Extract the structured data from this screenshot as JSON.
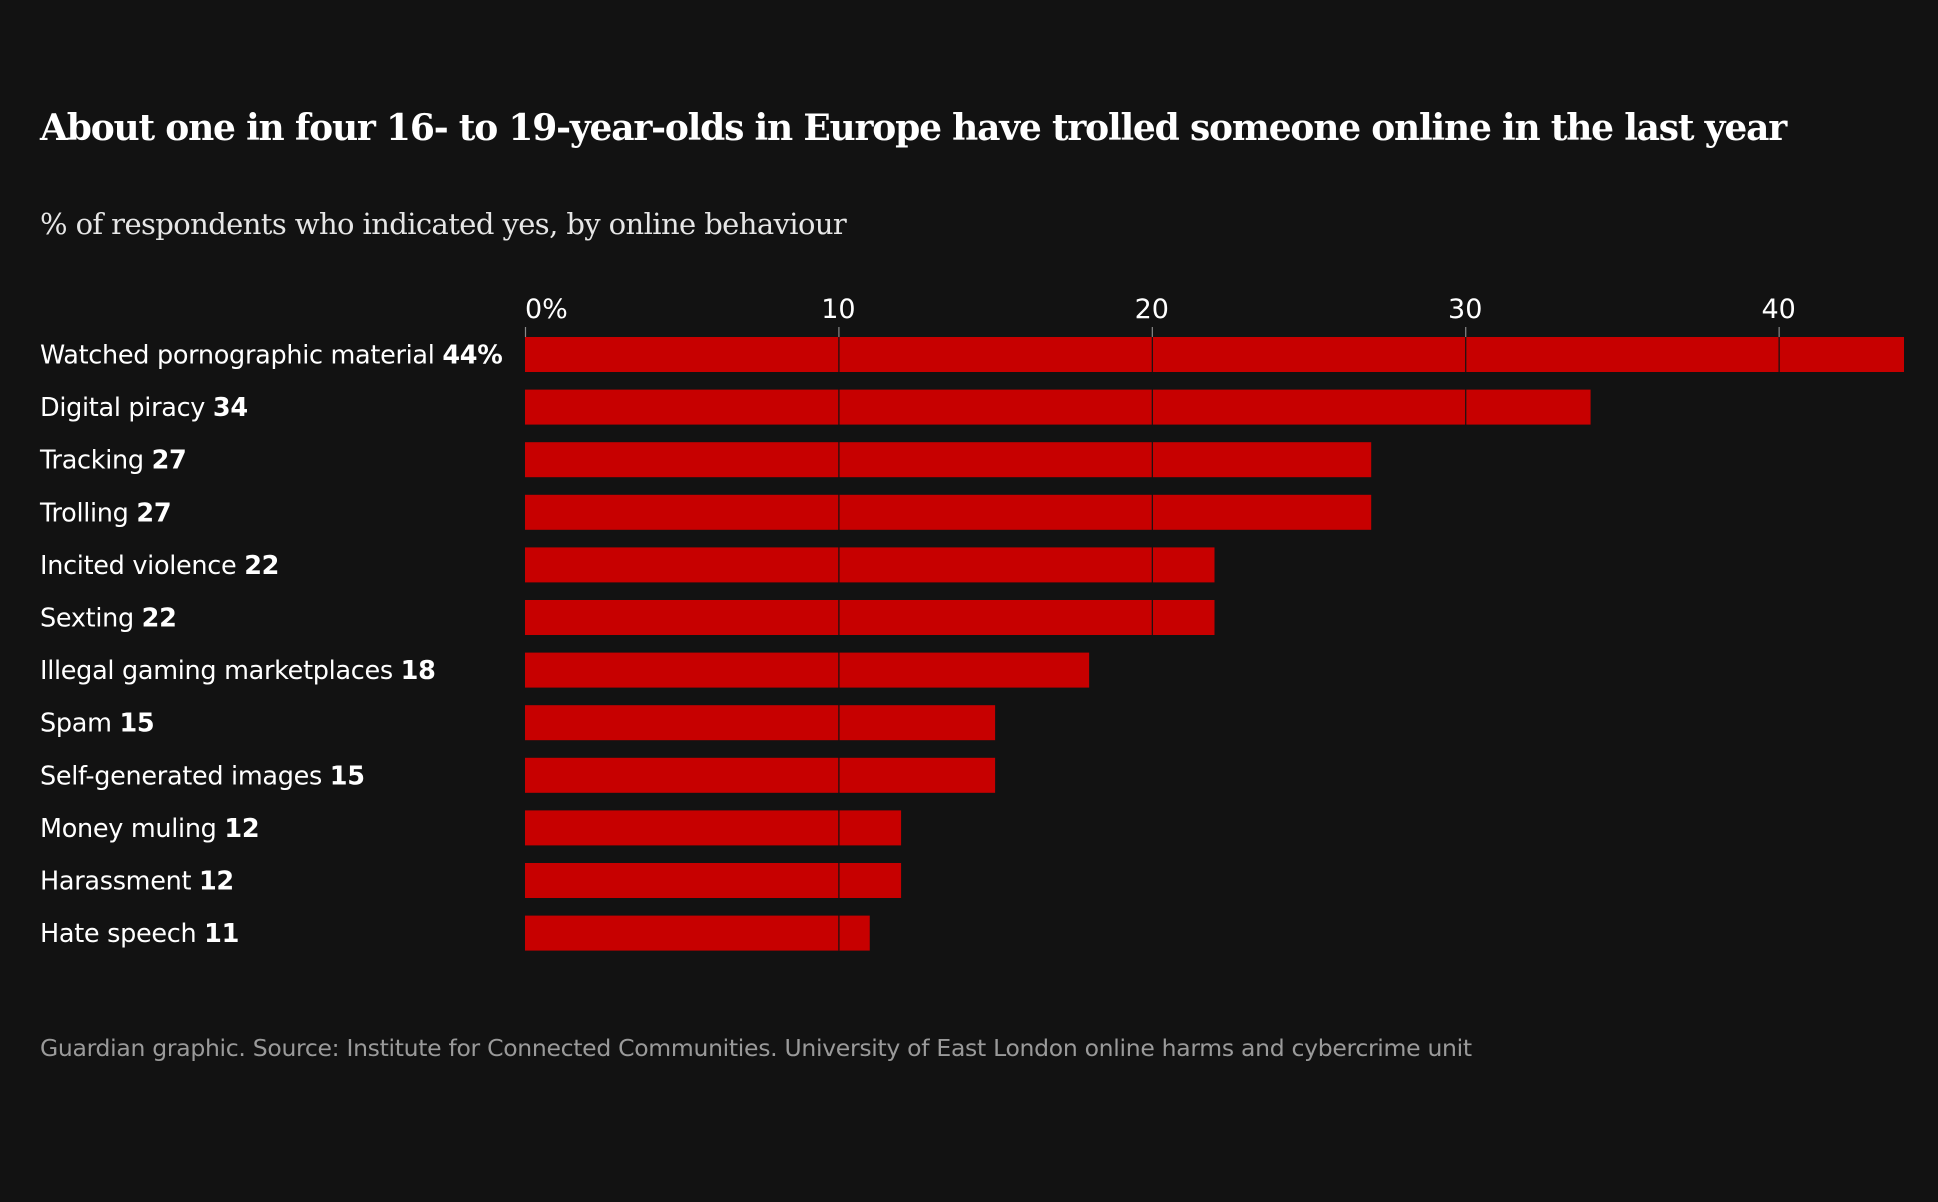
{
  "title": "About one in four 16- to 19-year-olds in Europe have trolled someone online in the last year",
  "subtitle": "% of respondents who indicated yes, by online behaviour",
  "source": "Guardian graphic. Source: Institute for Connected Communities. University of East London online harms and cybercrime unit",
  "colors": {
    "background": "#121212",
    "bar": "#c70000",
    "text": "#ffffff",
    "gridline": "#121212",
    "source_text": "#9a9a9a"
  },
  "chart_data": {
    "type": "bar",
    "orientation": "horizontal",
    "title": "About one in four 16- to 19-year-olds in Europe have trolled someone online in the last year",
    "subtitle": "% of respondents who indicated yes, by online behaviour",
    "xlabel": "",
    "ylabel": "",
    "xlim": [
      0,
      44
    ],
    "ticks": [
      0,
      10,
      20,
      30,
      40
    ],
    "tick_labels": [
      "0%",
      "10",
      "20",
      "30",
      "40"
    ],
    "grid": true,
    "categories": [
      "Watched pornographic material",
      "Digital piracy",
      "Tracking",
      "Trolling",
      "Incited violence",
      "Sexting",
      "Illegal gaming marketplaces",
      "Spam",
      "Self-generated images",
      "Money muling",
      "Harassment",
      "Hate speech"
    ],
    "values": [
      44,
      34,
      27,
      27,
      22,
      22,
      18,
      15,
      15,
      12,
      12,
      11
    ],
    "value_labels": [
      "44%",
      "34",
      "27",
      "27",
      "22",
      "22",
      "18",
      "15",
      "15",
      "12",
      "12",
      "11"
    ]
  }
}
